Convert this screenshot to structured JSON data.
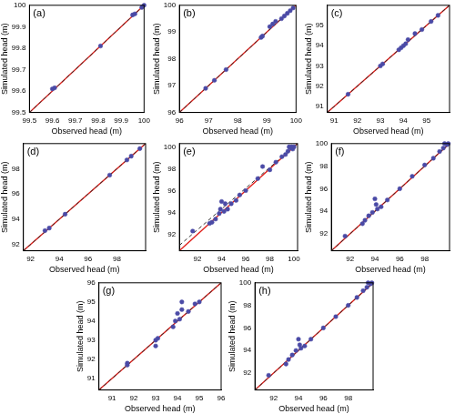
{
  "chart_data": [
    {
      "type": "scatter",
      "title": "(a)",
      "x_label": "Observed head (m)",
      "y_label": "Simulated head (m)",
      "xlim": [
        99.5,
        100
      ],
      "ylim": [
        99.5,
        100
      ],
      "xticks": [
        99.5,
        99.6,
        99.7,
        99.8,
        99.9,
        100
      ],
      "yticks": [
        99.5,
        99.6,
        99.7,
        99.8,
        99.9,
        100
      ],
      "grid": false,
      "series": [
        {
          "type": "scatter",
          "color": "#4a4aa6",
          "marker": "circle",
          "x": [
            99.6,
            99.61,
            99.81,
            99.95,
            99.96,
            99.99,
            100
          ],
          "values": [
            99.61,
            99.615,
            99.81,
            99.955,
            99.96,
            99.99,
            100
          ]
        },
        {
          "type": "line",
          "color": "#e0201b",
          "line_style": "solid",
          "x": [
            99.5,
            100
          ],
          "values": [
            99.5,
            100
          ]
        },
        {
          "type": "line",
          "color": "#333333",
          "line_style": "dashed",
          "x": [
            99.5,
            100
          ],
          "values": [
            99.5,
            100
          ]
        }
      ]
    },
    {
      "type": "scatter",
      "title": "(b)",
      "x_label": "Observed head (m)",
      "y_label": "Simulated head (m)",
      "xlim": [
        96,
        100
      ],
      "ylim": [
        96,
        100
      ],
      "xticks": [
        96,
        97,
        98,
        99,
        100
      ],
      "yticks": [
        96,
        97,
        98,
        99,
        100
      ],
      "grid": false,
      "series": [
        {
          "type": "scatter",
          "color": "#4a4aa6",
          "marker": "circle",
          "x": [
            96.9,
            97.2,
            97.6,
            98.8,
            98.85,
            99.1,
            99.2,
            99.3,
            99.5,
            99.6,
            99.7,
            99.8,
            99.9
          ],
          "values": [
            96.9,
            97.2,
            97.6,
            98.8,
            98.85,
            99.2,
            99.3,
            99.4,
            99.5,
            99.6,
            99.7,
            99.8,
            99.9
          ]
        },
        {
          "type": "line",
          "color": "#e0201b",
          "line_style": "solid",
          "x": [
            96,
            100
          ],
          "values": [
            96,
            100
          ]
        },
        {
          "type": "line",
          "color": "#333333",
          "line_style": "dashed",
          "x": [
            96,
            100
          ],
          "values": [
            96,
            100
          ]
        }
      ]
    },
    {
      "type": "scatter",
      "title": "(c)",
      "x_label": "Observed head (m)",
      "y_label": "Simulated head (m)",
      "xlim": [
        90.7,
        96
      ],
      "ylim": [
        90.7,
        96
      ],
      "xticks": [
        91,
        92,
        93,
        94,
        95
      ],
      "yticks": [
        91,
        92,
        93,
        94,
        95
      ],
      "grid": false,
      "series": [
        {
          "type": "scatter",
          "color": "#4a4aa6",
          "marker": "circle",
          "x": [
            91.6,
            93.0,
            93.1,
            93.8,
            93.9,
            94.0,
            94.1,
            94.2,
            94.5,
            94.8,
            95.2,
            95.5
          ],
          "values": [
            91.6,
            93.0,
            93.1,
            93.8,
            93.9,
            94.0,
            94.1,
            94.3,
            94.6,
            94.8,
            95.2,
            95.5
          ]
        },
        {
          "type": "line",
          "color": "#e0201b",
          "line_style": "solid",
          "x": [
            90.7,
            96
          ],
          "values": [
            90.7,
            96
          ]
        },
        {
          "type": "line",
          "color": "#333333",
          "line_style": "dashed",
          "x": [
            90.7,
            96
          ],
          "values": [
            90.7,
            96
          ]
        }
      ]
    },
    {
      "type": "scatter",
      "title": "(d)",
      "x_label": "Observed head (m)",
      "y_label": "Simulated head (m)",
      "xlim": [
        91.5,
        100
      ],
      "ylim": [
        91.5,
        100
      ],
      "xticks": [
        92,
        94,
        96,
        98
      ],
      "yticks": [
        92,
        94,
        96,
        98
      ],
      "grid": false,
      "series": [
        {
          "type": "scatter",
          "color": "#4a4aa6",
          "marker": "circle",
          "x": [
            93.0,
            93.3,
            94.4,
            97.5,
            98.7,
            99.0,
            99.6
          ],
          "values": [
            93.1,
            93.3,
            94.4,
            97.5,
            98.7,
            99.0,
            99.6
          ]
        },
        {
          "type": "line",
          "color": "#e0201b",
          "line_style": "solid",
          "x": [
            91.5,
            100
          ],
          "values": [
            91.5,
            100
          ]
        },
        {
          "type": "line",
          "color": "#333333",
          "line_style": "dashed",
          "x": [
            91.5,
            100
          ],
          "values": [
            91.5,
            100
          ]
        }
      ]
    },
    {
      "type": "scatter",
      "title": "(e)",
      "x_label": "Observed head (m)",
      "y_label": "Simulated head (m)",
      "xlim": [
        90.5,
        100.3
      ],
      "ylim": [
        90.5,
        100.3
      ],
      "xticks": [
        92,
        94,
        96,
        98,
        100
      ],
      "yticks": [
        92,
        94,
        96,
        98,
        100
      ],
      "grid": false,
      "series": [
        {
          "type": "scatter",
          "color": "#4a4aa6",
          "marker": "circle",
          "x": [
            91.6,
            93.0,
            93.2,
            93.5,
            93.8,
            93.9,
            94.0,
            94.2,
            94.3,
            94.5,
            94.8,
            95.2,
            95.5,
            96.0,
            97.0,
            97.4,
            98.0,
            98.5,
            99.0,
            99.3,
            99.5,
            99.6,
            99.7,
            99.8,
            99.9,
            100.0
          ],
          "values": [
            92.3,
            93.0,
            93.1,
            93.4,
            93.9,
            94.3,
            95.0,
            94.1,
            94.8,
            94.3,
            94.8,
            95.1,
            95.6,
            96.0,
            97.1,
            98.2,
            97.9,
            98.6,
            99.1,
            99.3,
            99.6,
            100.0,
            99.9,
            100.0,
            99.8,
            100.0
          ]
        },
        {
          "type": "line",
          "color": "#e0201b",
          "line_style": "solid",
          "x": [
            90.5,
            100.3
          ],
          "values": [
            90.5,
            100.3
          ]
        },
        {
          "type": "line",
          "color": "#333333",
          "line_style": "dashed",
          "x": [
            90.5,
            100.3
          ],
          "values": [
            91.0,
            100.3
          ]
        }
      ]
    },
    {
      "type": "scatter",
      "title": "(f)",
      "x_label": "Observed head (m)",
      "y_label": "Simulated head (m)",
      "xlim": [
        90.5,
        100
      ],
      "ylim": [
        90.5,
        100
      ],
      "xticks": [
        92,
        94,
        96,
        98
      ],
      "yticks": [
        92,
        94,
        96,
        98,
        100
      ],
      "grid": false,
      "series": [
        {
          "type": "scatter",
          "color": "#4a4aa6",
          "marker": "circle",
          "x": [
            91.6,
            93.0,
            93.2,
            93.5,
            93.8,
            94.0,
            94.1,
            94.2,
            94.5,
            95.0,
            96.0,
            97.0,
            98.0,
            98.7,
            99.2,
            99.5,
            99.6,
            99.8,
            99.9
          ],
          "values": [
            91.8,
            92.9,
            93.2,
            93.6,
            93.9,
            95.1,
            94.6,
            94.2,
            94.4,
            95.0,
            96.0,
            97.1,
            98.1,
            98.7,
            99.3,
            99.6,
            100.0,
            99.9,
            100.0
          ]
        },
        {
          "type": "line",
          "color": "#e0201b",
          "line_style": "solid",
          "x": [
            90.5,
            100
          ],
          "values": [
            90.5,
            100
          ]
        },
        {
          "type": "line",
          "color": "#333333",
          "line_style": "dashed",
          "x": [
            90.5,
            100
          ],
          "values": [
            90.5,
            100
          ]
        }
      ]
    },
    {
      "type": "scatter",
      "title": "(g)",
      "x_label": "Observed head (m)",
      "y_label": "Simulated head (m)",
      "xlim": [
        90.4,
        96
      ],
      "ylim": [
        90.4,
        96
      ],
      "xticks": [
        91,
        92,
        93,
        94,
        95,
        96
      ],
      "yticks": [
        91,
        92,
        93,
        94,
        95,
        96
      ],
      "grid": false,
      "series": [
        {
          "type": "scatter",
          "color": "#4a4aa6",
          "marker": "circle",
          "x": [
            91.7,
            91.7,
            93.0,
            93.0,
            93.1,
            93.8,
            93.9,
            94.0,
            94.1,
            94.2,
            94.2,
            94.5,
            94.8,
            95.0
          ],
          "values": [
            91.8,
            91.7,
            92.7,
            93.0,
            93.1,
            93.7,
            94.0,
            94.4,
            94.1,
            95.0,
            94.6,
            94.5,
            94.9,
            95.0
          ]
        },
        {
          "type": "line",
          "color": "#e0201b",
          "line_style": "solid",
          "x": [
            90.4,
            96
          ],
          "values": [
            90.4,
            96
          ]
        },
        {
          "type": "line",
          "color": "#333333",
          "line_style": "dashed",
          "x": [
            90.4,
            96
          ],
          "values": [
            90.4,
            96
          ]
        }
      ]
    },
    {
      "type": "scatter",
      "title": "(h)",
      "x_label": "Observed head (m)",
      "y_label": "Simulated head (m)",
      "xlim": [
        90.5,
        100
      ],
      "ylim": [
        90.5,
        100
      ],
      "xticks": [
        92,
        94,
        96,
        98
      ],
      "yticks": [
        92,
        94,
        96,
        98,
        100
      ],
      "grid": false,
      "series": [
        {
          "type": "scatter",
          "color": "#4a4aa6",
          "marker": "circle",
          "x": [
            91.6,
            93.0,
            93.2,
            93.5,
            93.8,
            94.0,
            94.1,
            94.2,
            94.5,
            95.0,
            96.0,
            97.0,
            98.0,
            98.7,
            99.2,
            99.5,
            99.6,
            99.8,
            99.9
          ],
          "values": [
            91.8,
            92.8,
            93.2,
            93.6,
            94.0,
            95.0,
            94.5,
            94.2,
            94.4,
            95.0,
            96.0,
            97.0,
            98.0,
            98.7,
            99.3,
            99.6,
            100.0,
            99.9,
            100.0
          ]
        },
        {
          "type": "line",
          "color": "#e0201b",
          "line_style": "solid",
          "x": [
            90.5,
            100
          ],
          "values": [
            90.5,
            100
          ]
        },
        {
          "type": "line",
          "color": "#333333",
          "line_style": "dashed",
          "x": [
            90.5,
            100
          ],
          "values": [
            90.5,
            100
          ]
        }
      ]
    }
  ]
}
